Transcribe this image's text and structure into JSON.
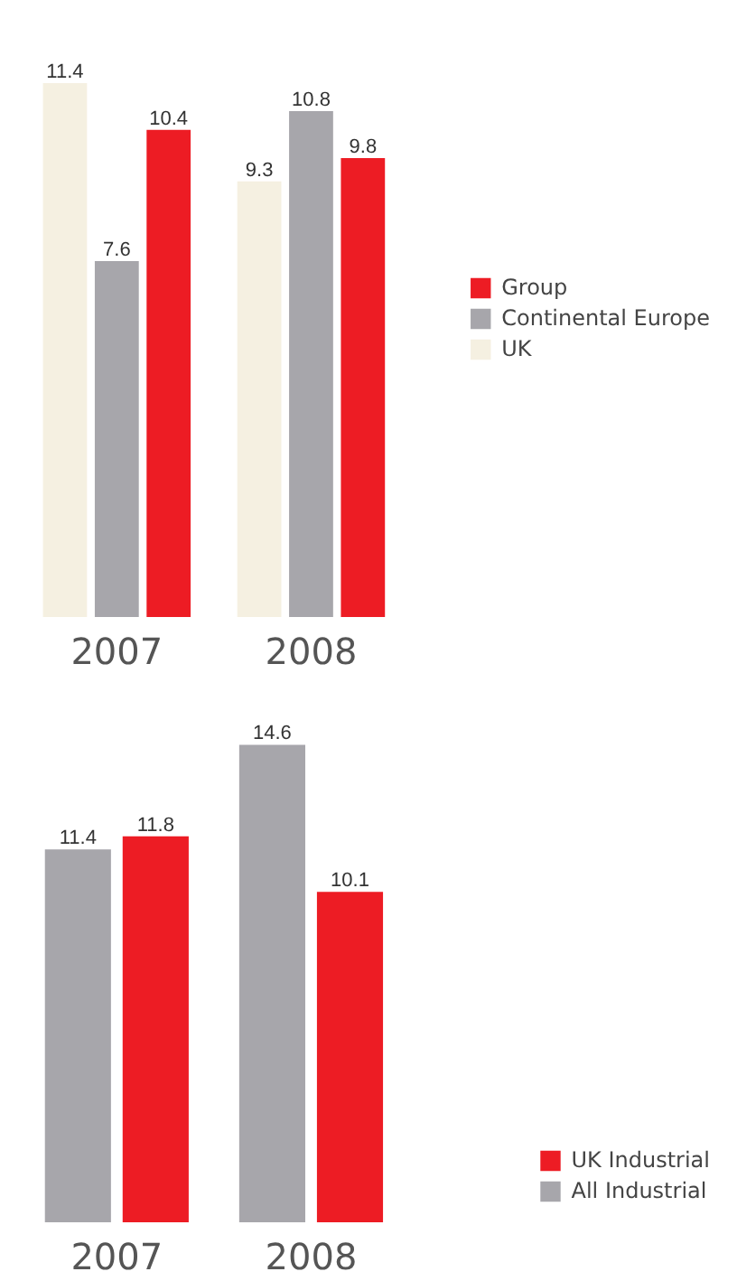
{
  "chart_data": [
    {
      "type": "bar",
      "categories": [
        "2007",
        "2008"
      ],
      "data_labels": true,
      "legend": "right",
      "series": [
        {
          "name": "UK",
          "color": "#f5f0e1",
          "values": [
            11.4,
            9.3
          ]
        },
        {
          "name": "Continental Europe",
          "color": "#a7a6ab",
          "values": [
            7.6,
            10.8
          ]
        },
        {
          "name": "Group",
          "color": "#ed1c24",
          "values": [
            10.4,
            9.8
          ]
        }
      ]
    },
    {
      "type": "bar",
      "categories": [
        "2007",
        "2008"
      ],
      "data_labels": true,
      "legend": "bottom right",
      "series": [
        {
          "name": "All Industrial",
          "color": "#a7a6ab",
          "values": [
            11.4,
            14.6
          ]
        },
        {
          "name": "UK Industrial",
          "color": "#ed1c24",
          "values": [
            11.8,
            10.1
          ]
        }
      ]
    }
  ]
}
